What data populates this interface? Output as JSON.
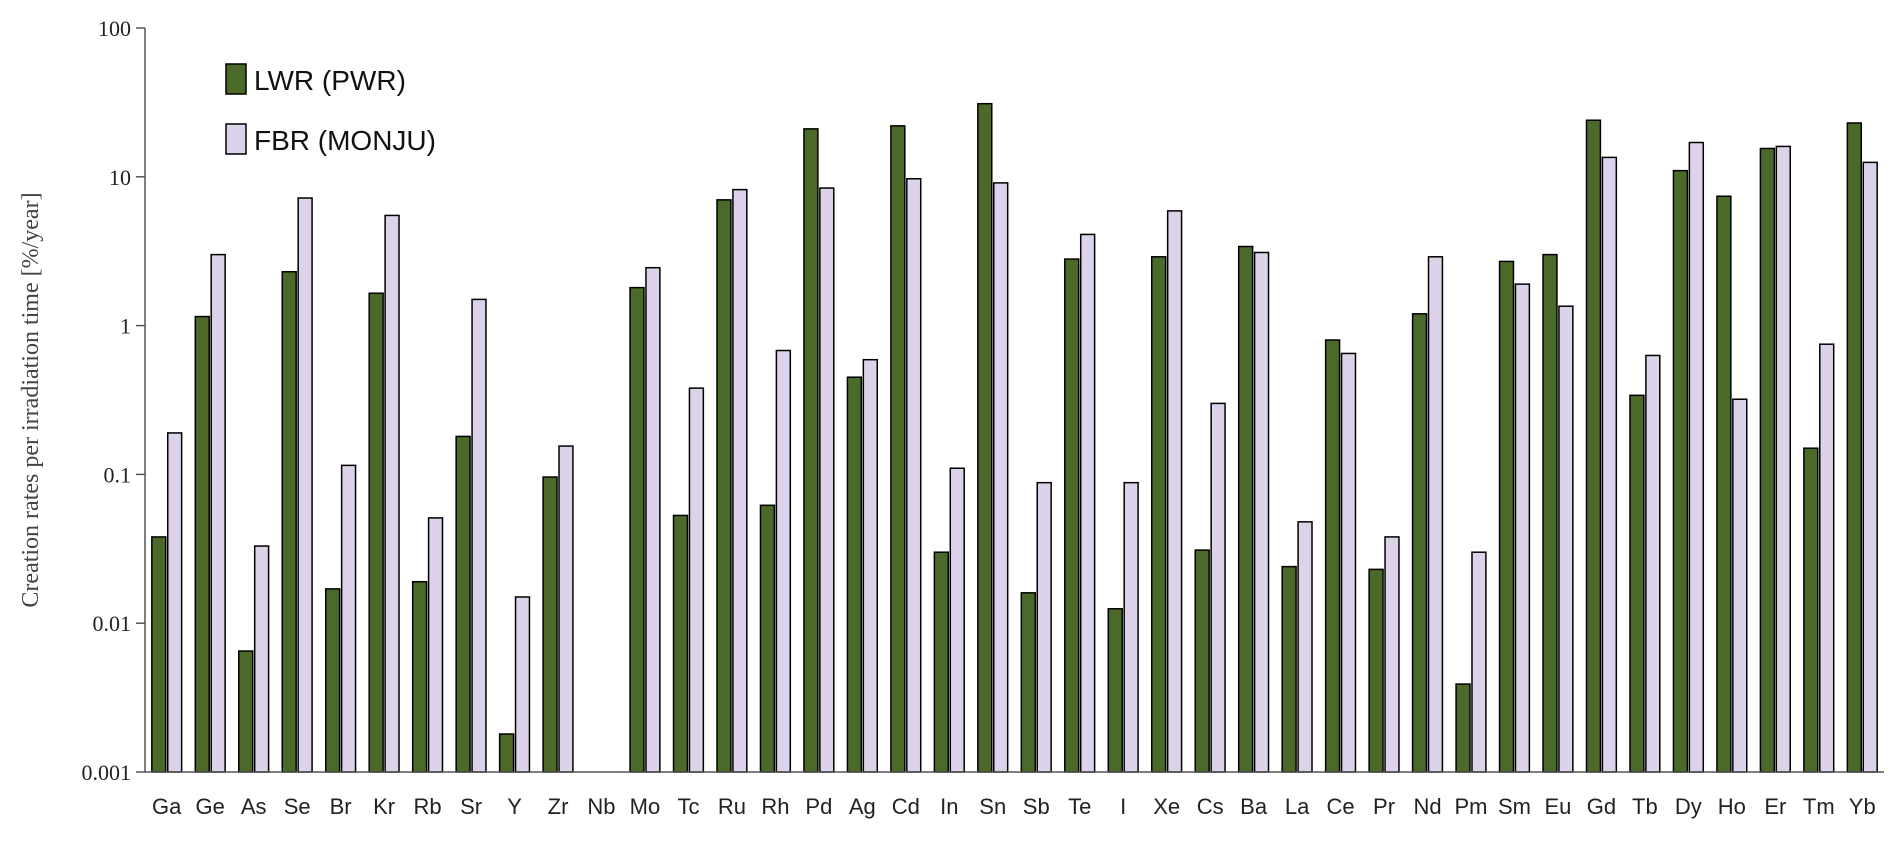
{
  "chart_data": {
    "type": "bar",
    "ylabel": "Creation rates per irradiation time [%/year]",
    "xlabel": "",
    "yscale": "log",
    "ylim": [
      0.001,
      100
    ],
    "yticks": [
      "0.001",
      "0.01",
      "0.1",
      "1",
      "10",
      "100"
    ],
    "legend_position": "top-left",
    "categories": [
      "Ga",
      "Ge",
      "As",
      "Se",
      "Br",
      "Kr",
      "Rb",
      "Sr",
      "Y",
      "Zr",
      "Nb",
      "Mo",
      "Tc",
      "Ru",
      "Rh",
      "Pd",
      "Ag",
      "Cd",
      "In",
      "Sn",
      "Sb",
      "Te",
      "I",
      "Xe",
      "Cs",
      "Ba",
      "La",
      "Ce",
      "Pr",
      "Nd",
      "Pm",
      "Sm",
      "Eu",
      "Gd",
      "Tb",
      "Dy",
      "Ho",
      "Er",
      "Tm",
      "Yb"
    ],
    "series": [
      {
        "name": "LWR (PWR)",
        "color": "#4b6a2a",
        "values": [
          0.038,
          1.15,
          0.0065,
          2.3,
          0.017,
          1.65,
          0.019,
          0.18,
          0.0018,
          0.096,
          null,
          1.8,
          0.053,
          7.0,
          0.062,
          21,
          0.45,
          22,
          0.03,
          31,
          0.016,
          2.8,
          0.0125,
          2.9,
          0.031,
          3.4,
          0.024,
          0.8,
          0.023,
          1.2,
          0.0039,
          2.7,
          3.0,
          24,
          0.34,
          11,
          7.4,
          15.5,
          0.15,
          23
        ]
      },
      {
        "name": "FBR (MONJU)",
        "color": "#dcd3ea",
        "values": [
          0.19,
          3.0,
          0.033,
          7.2,
          0.115,
          5.5,
          0.051,
          1.5,
          0.015,
          0.155,
          null,
          2.45,
          0.38,
          8.2,
          0.68,
          8.4,
          0.59,
          9.7,
          0.11,
          9.1,
          0.088,
          4.1,
          0.088,
          5.9,
          0.3,
          3.1,
          0.048,
          0.65,
          0.038,
          2.9,
          0.03,
          1.9,
          1.35,
          13.5,
          0.63,
          17,
          0.32,
          16,
          0.75,
          12.5
        ]
      }
    ]
  }
}
